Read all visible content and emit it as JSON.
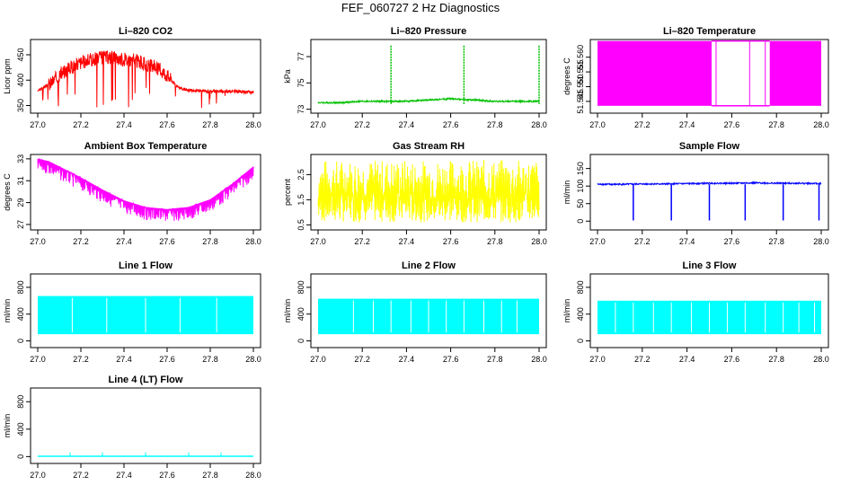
{
  "page_title": "FEF_060727  2 Hz Diagnostics",
  "x_ticks": [
    27.0,
    27.2,
    27.4,
    27.6,
    27.8,
    28.0
  ],
  "x_tick_labels": [
    "27.0",
    "27.2",
    "27.4",
    "27.6",
    "27.8",
    "28.0"
  ],
  "chart_data": [
    {
      "id": "co2",
      "type": "line",
      "title": "Li–820 CO2",
      "ylabel": "Licor ppm",
      "color": "#ff0000",
      "xlim": [
        27.0,
        28.0
      ],
      "ylim": [
        335,
        480
      ],
      "y_ticks": [
        350,
        400,
        450
      ],
      "y_tick_labels": [
        "350",
        "400",
        "450"
      ],
      "series": [
        {
          "x": [
            27.0,
            27.05,
            27.1,
            27.15,
            27.2,
            27.25,
            27.3,
            27.35,
            27.4,
            27.45,
            27.5,
            27.55,
            27.6,
            27.65,
            27.7,
            27.8,
            27.9,
            28.0
          ],
          "y": [
            380,
            390,
            410,
            425,
            435,
            440,
            445,
            445,
            440,
            440,
            430,
            425,
            410,
            385,
            380,
            378,
            378,
            376
          ]
        }
      ]
    },
    {
      "id": "pressure",
      "type": "line",
      "title": "Li–820 Pressure",
      "ylabel": "kPa",
      "color": "#00c000",
      "xlim": [
        27.0,
        28.0
      ],
      "ylim": [
        72.7,
        78.3
      ],
      "y_ticks": [
        73,
        75,
        77
      ],
      "y_tick_labels": [
        "73",
        "75",
        "77"
      ],
      "series": [
        {
          "x": [
            27.0,
            27.1,
            27.2,
            27.3,
            27.4,
            27.5,
            27.6,
            27.7,
            27.8,
            27.9,
            28.0
          ],
          "y": [
            73.5,
            73.5,
            73.6,
            73.6,
            73.6,
            73.7,
            73.8,
            73.7,
            73.6,
            73.6,
            73.6
          ]
        }
      ]
    },
    {
      "id": "temperature",
      "type": "line",
      "title": "Li–820 Temperature",
      "ylabel": "degrees C",
      "color": "#ff00ff",
      "xlim": [
        27.0,
        28.0
      ],
      "ylim": [
        51.541,
        51.566
      ],
      "y_ticks": [
        51.545,
        51.55,
        51.555,
        51.56
      ],
      "y_tick_labels": [
        "51.545",
        "51.550",
        "51.555",
        "51.560"
      ],
      "series": [
        {
          "x": [
            27.0,
            28.0
          ],
          "y": [
            51.5435,
            51.5655
          ]
        }
      ]
    },
    {
      "id": "ambient",
      "type": "line",
      "title": "Ambient Box Temperature",
      "ylabel": "degrees C",
      "color": "#ff00ff",
      "xlim": [
        27.0,
        28.0
      ],
      "ylim": [
        26.5,
        33.4
      ],
      "y_ticks": [
        27,
        29,
        31,
        33
      ],
      "y_tick_labels": [
        "27",
        "29",
        "31",
        "33"
      ],
      "series": [
        {
          "x": [
            27.0,
            27.05,
            27.1,
            27.2,
            27.3,
            27.4,
            27.5,
            27.6,
            27.7,
            27.8,
            27.9,
            27.95,
            28.0
          ],
          "y": [
            33.0,
            32.8,
            32.3,
            31.3,
            30.2,
            29.2,
            28.6,
            28.4,
            28.6,
            29.3,
            30.7,
            31.5,
            32.3
          ]
        }
      ]
    },
    {
      "id": "rh",
      "type": "line",
      "title": "Gas Stream RH",
      "ylabel": "percent",
      "color": "#ffff00",
      "xlim": [
        27.0,
        28.0
      ],
      "ylim": [
        0.3,
        3.3
      ],
      "y_ticks": [
        0.5,
        1.5,
        2.5
      ],
      "y_tick_labels": [
        "0.5",
        "1.5",
        "2.5"
      ],
      "series": [
        {
          "x": [
            27.0,
            28.0
          ],
          "y": [
            0.6,
            3.1
          ]
        }
      ]
    },
    {
      "id": "sample_flow",
      "type": "line",
      "title": "Sample Flow",
      "ylabel": "ml/min",
      "color": "#0000ff",
      "xlim": [
        27.0,
        28.0
      ],
      "ylim": [
        -25,
        190
      ],
      "y_ticks": [
        0,
        50,
        100,
        150
      ],
      "y_tick_labels": [
        "0",
        "50",
        "100",
        "150"
      ],
      "series": [
        {
          "x": [
            27.0,
            27.1,
            27.2,
            27.3,
            27.4,
            27.5,
            27.6,
            27.7,
            27.8,
            27.9,
            28.0
          ],
          "y": [
            105,
            105,
            106,
            106,
            107,
            108,
            108,
            109,
            108,
            108,
            107
          ]
        }
      ]
    },
    {
      "id": "line1",
      "type": "line",
      "title": "Line 1 Flow",
      "ylabel": "ml/min",
      "color": "#00ffff",
      "xlim": [
        27.0,
        28.0
      ],
      "ylim": [
        -100,
        1000
      ],
      "y_ticks": [
        0,
        400,
        800
      ],
      "y_tick_labels": [
        "0",
        "400",
        "800"
      ],
      "series": [
        {
          "x": [
            27.0,
            28.0
          ],
          "y": [
            100,
            670
          ]
        }
      ]
    },
    {
      "id": "line2",
      "type": "line",
      "title": "Line 2 Flow",
      "ylabel": "ml/min",
      "color": "#00ffff",
      "xlim": [
        27.0,
        28.0
      ],
      "ylim": [
        -100,
        1000
      ],
      "y_ticks": [
        0,
        400,
        800
      ],
      "y_tick_labels": [
        "0",
        "400",
        "800"
      ],
      "series": [
        {
          "x": [
            27.0,
            28.0
          ],
          "y": [
            100,
            630
          ]
        }
      ]
    },
    {
      "id": "line3",
      "type": "line",
      "title": "Line 3 Flow",
      "ylabel": "ml/min",
      "color": "#00ffff",
      "xlim": [
        27.0,
        28.0
      ],
      "ylim": [
        -100,
        1000
      ],
      "y_ticks": [
        0,
        400,
        800
      ],
      "y_tick_labels": [
        "0",
        "400",
        "800"
      ],
      "series": [
        {
          "x": [
            27.0,
            28.0
          ],
          "y": [
            100,
            600
          ]
        }
      ]
    },
    {
      "id": "line4",
      "type": "line",
      "title": "Line 4 (LT) Flow",
      "ylabel": "ml/min",
      "color": "#00ffff",
      "xlim": [
        27.0,
        28.0
      ],
      "ylim": [
        -100,
        1000
      ],
      "y_ticks": [
        0,
        400,
        800
      ],
      "y_tick_labels": [
        "0",
        "400",
        "800"
      ],
      "series": [
        {
          "x": [
            27.0,
            27.15,
            27.3,
            27.5,
            27.7,
            27.85,
            28.0
          ],
          "y": [
            5,
            5,
            5,
            5,
            5,
            5,
            5
          ]
        }
      ]
    }
  ]
}
